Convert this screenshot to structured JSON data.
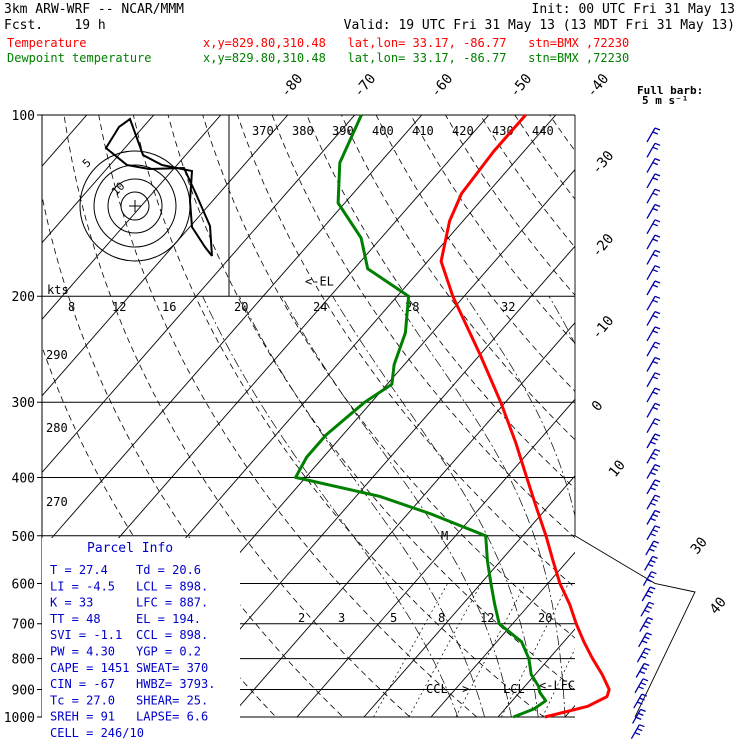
{
  "header": {
    "model": "3km ARW-WRF -- NCAR/MMM",
    "init": "Init: 00 UTC Fri 31 May 13",
    "fcst": "Fcst.    19 h",
    "valid": "Valid: 19 UTC Fri 31 May 13 (13 MDT Fri 31 May 13)",
    "temp_label": "Temperature",
    "temp_loc": "x,y=829.80,310.48   lat,lon= 33.17, -86.77   stn=BMX ,72230",
    "dew_label": "Dewpoint temperature",
    "dew_loc": "x,y=829.80,310.48   lat,lon= 33.17, -86.77   stn=BMX ,72230",
    "full_barb": "Full barb:",
    "full_barb_units": "5 m s⁻¹"
  },
  "colors": {
    "temperature": "#ff0000",
    "dewpoint": "#008000",
    "parcel_box": "#0000cc",
    "barbs": "#0000aa",
    "grid": "#000000"
  },
  "parcel_info": {
    "title": "Parcel Info",
    "rows": [
      {
        "left": "T  =   27.4",
        "right": "Td =  20.6"
      },
      {
        "left": "LI =   -4.5",
        "right": "LCL = 898."
      },
      {
        "left": "K  =     33",
        "right": "LFC = 887."
      },
      {
        "left": "TT =     48",
        "right": "EL  = 194."
      },
      {
        "left": "SVI =  -1.1",
        "right": "CCL = 898."
      },
      {
        "left": "PW =   4.30",
        "right": "YGP =  0.2"
      },
      {
        "left": "CAPE = 1451",
        "right": "SWEAT= 370"
      },
      {
        "left": "CIN =   -67",
        "right": "HWBZ= 3793."
      },
      {
        "left": "Tc =   27.0",
        "right": "SHEAR= 25."
      },
      {
        "left": "SREH =   91",
        "right": "LAPSE= 6.6"
      },
      {
        "left": "CELL = 246/10",
        "right": ""
      }
    ]
  },
  "hodograph": {
    "units_label": "kts",
    "ring_labels": [
      "5",
      "10"
    ]
  },
  "levels_annotations": {
    "el": "<-EL",
    "lcl": "LCL",
    "lfc": "<-LFC",
    "ccl": "CCL ->",
    "m": "M"
  },
  "chart_data": {
    "type": "line",
    "pressure_levels": [
      100,
      200,
      300,
      400,
      500,
      600,
      700,
      800,
      900,
      1000
    ],
    "temperature_axis_labels": [
      "-80",
      "-70",
      "-60",
      "-50",
      "-40",
      "-30",
      "-20",
      "-10",
      "0",
      "10",
      "30",
      "40"
    ],
    "theta_labels": [
      "370",
      "380",
      "390",
      "400",
      "410",
      "420",
      "430",
      "440"
    ],
    "theta_left_labels": [
      "290",
      "280",
      "270"
    ],
    "mixing_ratio_labels_upper": [
      "8",
      "12",
      "16",
      "20",
      "24",
      "28",
      "32"
    ],
    "mixing_ratio_labels_lower": [
      "2",
      "3",
      "5",
      "8",
      "12",
      "20"
    ],
    "series": [
      {
        "name": "Temperature",
        "points": [
          [
            1000,
            17
          ],
          [
            960,
            22
          ],
          [
            925,
            23.6
          ],
          [
            900,
            23
          ],
          [
            850,
            20
          ],
          [
            800,
            16.5
          ],
          [
            750,
            13
          ],
          [
            700,
            9.5
          ],
          [
            650,
            6
          ],
          [
            600,
            1.8
          ],
          [
            550,
            -2.2
          ],
          [
            500,
            -6.5
          ],
          [
            450,
            -11.5
          ],
          [
            400,
            -17
          ],
          [
            350,
            -23.2
          ],
          [
            300,
            -30.7
          ],
          [
            250,
            -40
          ],
          [
            200,
            -51.7
          ],
          [
            175,
            -58
          ],
          [
            150,
            -62
          ],
          [
            135,
            -63.8
          ],
          [
            115,
            -64.5
          ],
          [
            100,
            -64.5
          ]
        ]
      },
      {
        "name": "Dewpoint temperature",
        "points": [
          [
            1000,
            12.3
          ],
          [
            970,
            14.3
          ],
          [
            940,
            15
          ],
          [
            910,
            13
          ],
          [
            890,
            12.1
          ],
          [
            850,
            9.4
          ],
          [
            800,
            7
          ],
          [
            750,
            3.7
          ],
          [
            700,
            -2
          ],
          [
            650,
            -5.2
          ],
          [
            600,
            -8.5
          ],
          [
            550,
            -12
          ],
          [
            500,
            -15.5
          ],
          [
            460,
            -26.5
          ],
          [
            430,
            -36.5
          ],
          [
            400,
            -51.5
          ],
          [
            370,
            -52.5
          ],
          [
            340,
            -52.5
          ],
          [
            300,
            -51
          ],
          [
            280,
            -49.3
          ],
          [
            260,
            -51.5
          ],
          [
            230,
            -54
          ],
          [
            200,
            -58.3
          ],
          [
            180,
            -68
          ],
          [
            160,
            -73
          ],
          [
            140,
            -81
          ],
          [
            120,
            -86
          ],
          [
            100,
            -89
          ]
        ]
      }
    ]
  }
}
